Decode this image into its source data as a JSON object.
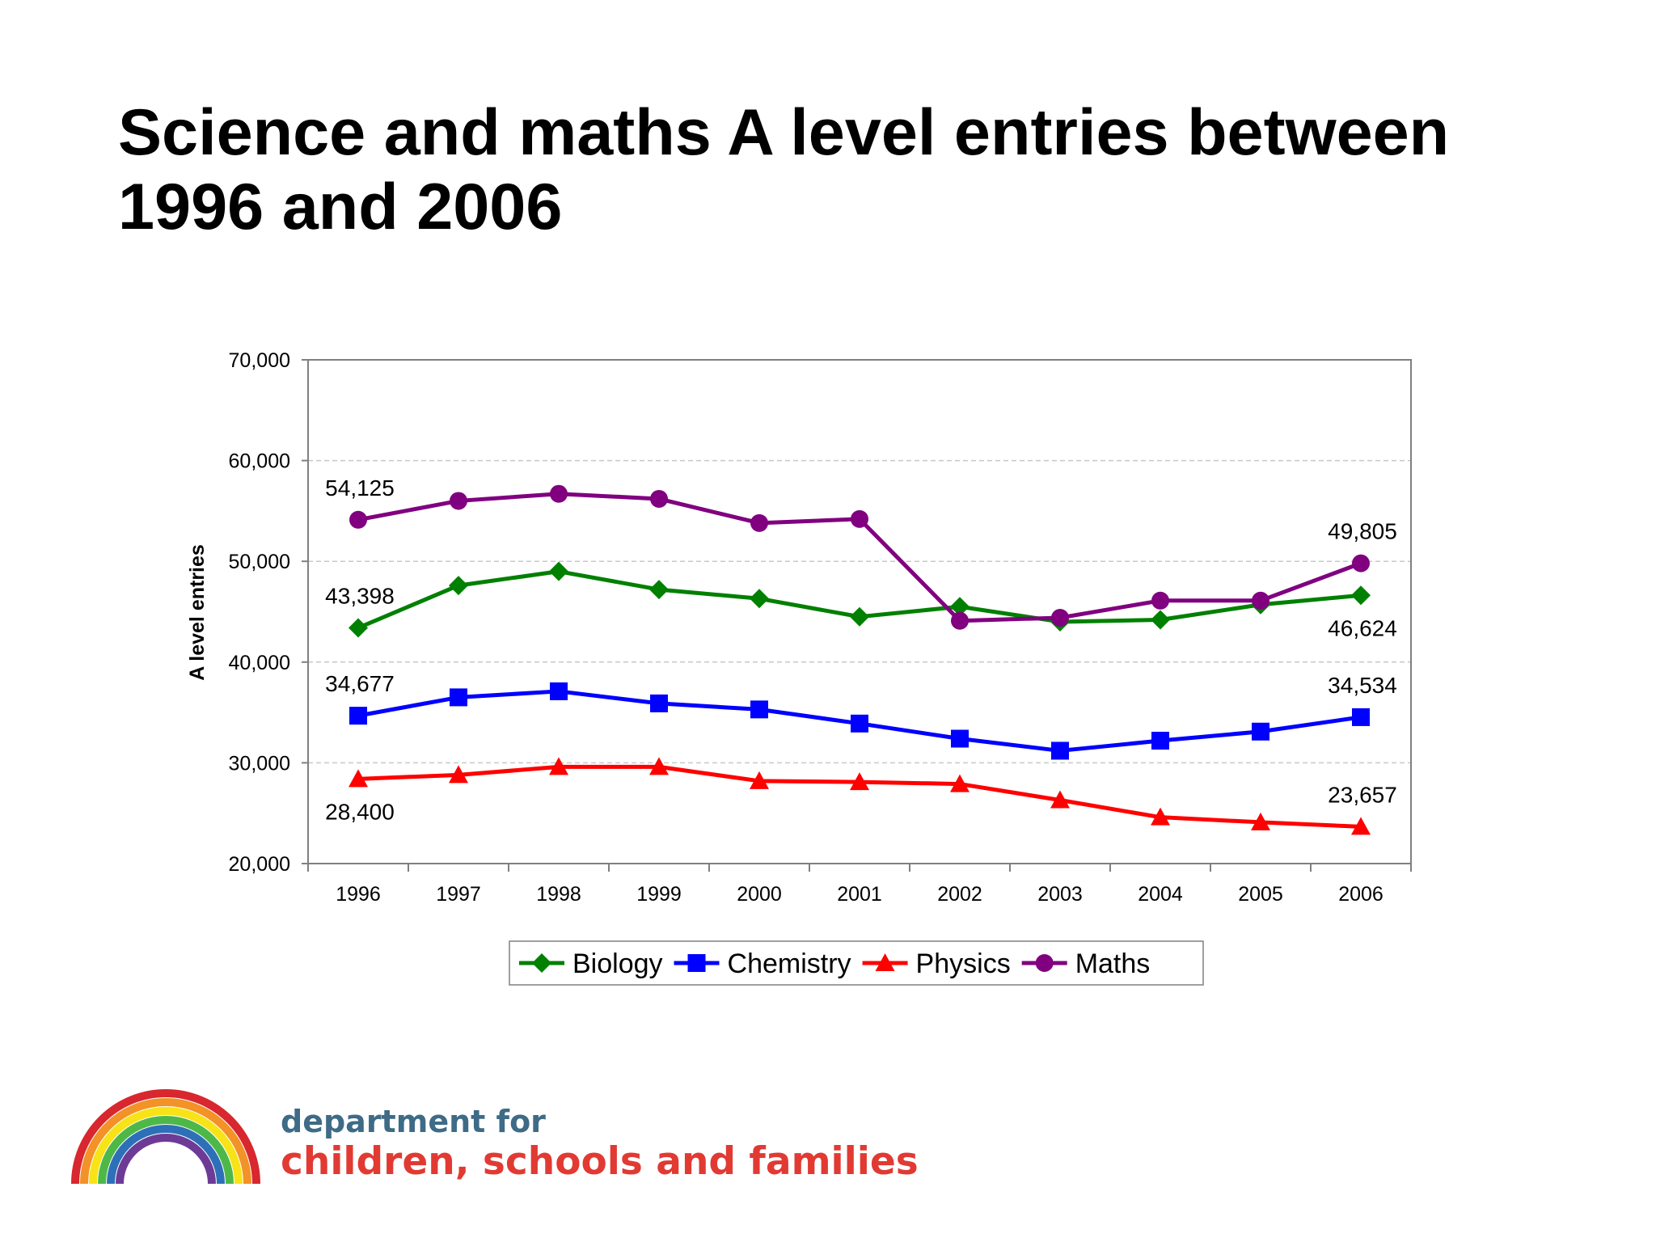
{
  "title_lines": [
    "Science and maths A level entries between",
    "1996 and 2006"
  ],
  "logo": {
    "line1": "department for",
    "line2": "children, schools and families",
    "rainbow_colors": [
      "#d8272e",
      "#f29227",
      "#f7e317",
      "#4db848",
      "#2e70b8",
      "#6d3b96"
    ]
  },
  "chart_data": {
    "type": "line",
    "title": "",
    "xlabel": "",
    "ylabel": "A level entries",
    "ylim": [
      20000,
      70000
    ],
    "y_ticks": [
      20000,
      30000,
      40000,
      50000,
      60000,
      70000
    ],
    "y_tick_labels": [
      "20,000",
      "30,000",
      "40,000",
      "50,000",
      "60,000",
      "70,000"
    ],
    "categories": [
      "1996",
      "1997",
      "1998",
      "1999",
      "2000",
      "2001",
      "2002",
      "2003",
      "2004",
      "2005",
      "2006"
    ],
    "grid": true,
    "legend_position": "bottom",
    "series": [
      {
        "name": "Biology",
        "color": "#008000",
        "marker": "diamond",
        "values": [
          43398,
          47600,
          49000,
          47200,
          46300,
          44500,
          45500,
          44000,
          44200,
          45700,
          46624
        ],
        "labels": [
          {
            "index": 0,
            "text": "43,398",
            "pos": "above"
          },
          {
            "index": 10,
            "text": "46,624",
            "pos": "below"
          }
        ]
      },
      {
        "name": "Chemistry",
        "color": "#0000ff",
        "marker": "square",
        "values": [
          34677,
          36500,
          37100,
          35900,
          35300,
          33900,
          32400,
          31200,
          32200,
          33100,
          34534
        ],
        "labels": [
          {
            "index": 0,
            "text": "34,677",
            "pos": "above"
          },
          {
            "index": 10,
            "text": "34,534",
            "pos": "above"
          }
        ]
      },
      {
        "name": "Physics",
        "color": "#ff0000",
        "marker": "triangle",
        "values": [
          28400,
          28800,
          29600,
          29600,
          28200,
          28100,
          27900,
          26300,
          24600,
          24100,
          23657
        ],
        "labels": [
          {
            "index": 0,
            "text": "28,400",
            "pos": "below"
          },
          {
            "index": 10,
            "text": "23,657",
            "pos": "above"
          }
        ]
      },
      {
        "name": "Maths",
        "color": "#800080",
        "marker": "circle",
        "values": [
          54125,
          56000,
          56700,
          56200,
          53800,
          54200,
          44100,
          44400,
          46100,
          46100,
          49805
        ],
        "labels": [
          {
            "index": 0,
            "text": "54,125",
            "pos": "above"
          },
          {
            "index": 10,
            "text": "49,805",
            "pos": "above"
          }
        ]
      }
    ]
  }
}
